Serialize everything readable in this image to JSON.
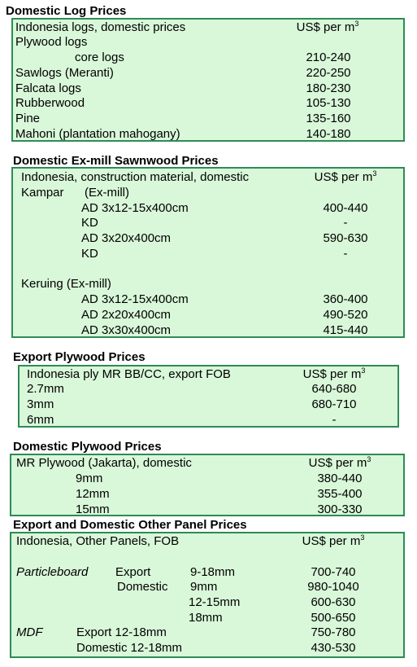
{
  "unit": {
    "label": "US$ per m",
    "exp": "3"
  },
  "log": {
    "heading": "Domestic Log Prices",
    "header_label": "Indonesia logs, domestic prices",
    "rows": [
      {
        "label": "Plywood logs",
        "value": ""
      },
      {
        "label": "core logs",
        "value": "210-240"
      },
      {
        "label": "Sawlogs (Meranti)",
        "value": "220-250"
      },
      {
        "label": "Falcata logs",
        "value": "180-230"
      },
      {
        "label": "Rubberwood",
        "value": "105-130"
      },
      {
        "label": "Pine",
        "value": "135-160"
      },
      {
        "label": "Mahoni (plantation mahogany)",
        "value": "140-180"
      }
    ]
  },
  "sawn": {
    "heading": "Domestic Ex-mill Sawnwood Prices",
    "header_label": "Indonesia, construction material, domestic",
    "kampar": {
      "name": "Kampar",
      "suffix": "(Ex-mill)"
    },
    "keruing": "Keruing (Ex-mill)",
    "rows": [
      {
        "label": "AD 3x12-15x400cm",
        "value": "400-440"
      },
      {
        "label": "KD",
        "value": "-"
      },
      {
        "label": "AD 3x20x400cm",
        "value": "590-630"
      },
      {
        "label": "KD",
        "value": "-"
      },
      {
        "label": "AD 3x12-15x400cm",
        "value": "360-400"
      },
      {
        "label": "AD 2x20x400cm",
        "value": "490-520"
      },
      {
        "label": "AD 3x30x400cm",
        "value": "415-440"
      }
    ]
  },
  "export_ply": {
    "heading": "Export Plywood Prices",
    "header_label": "Indonesia ply MR BB/CC, export FOB",
    "rows": [
      {
        "label": "2.7mm",
        "value": "640-680"
      },
      {
        "label": "3mm",
        "value": "680-710"
      },
      {
        "label": "6mm",
        "value": "-"
      }
    ]
  },
  "dom_ply": {
    "heading": "Domestic Plywood Prices",
    "header_label": "MR Plywood (Jakarta), domestic",
    "rows": [
      {
        "label": "9mm",
        "value": "380-440"
      },
      {
        "label": "12mm",
        "value": "355-400"
      },
      {
        "label": "15mm",
        "value": "300-330"
      }
    ]
  },
  "panel": {
    "heading": "Export and Domestic Other Panel Prices",
    "header_label": "Indonesia, Other Panels, FOB",
    "particleboard": "Particleboard",
    "pb_export": "Export",
    "pb_domestic": "Domestic",
    "mdf": "MDF",
    "rows": [
      {
        "label": "9-18mm",
        "value": "700-740"
      },
      {
        "label": "9mm",
        "value": "980-1040"
      },
      {
        "label": "12-15mm",
        "value": "600-630"
      },
      {
        "label": "18mm",
        "value": "500-650"
      },
      {
        "label": "Export 12-18mm",
        "value": "750-780"
      },
      {
        "label": "Domestic 12-18mm",
        "value": "430-530"
      }
    ]
  },
  "colors": {
    "box_fill": "#d9f7d9",
    "box_border": "#2e8b57"
  }
}
